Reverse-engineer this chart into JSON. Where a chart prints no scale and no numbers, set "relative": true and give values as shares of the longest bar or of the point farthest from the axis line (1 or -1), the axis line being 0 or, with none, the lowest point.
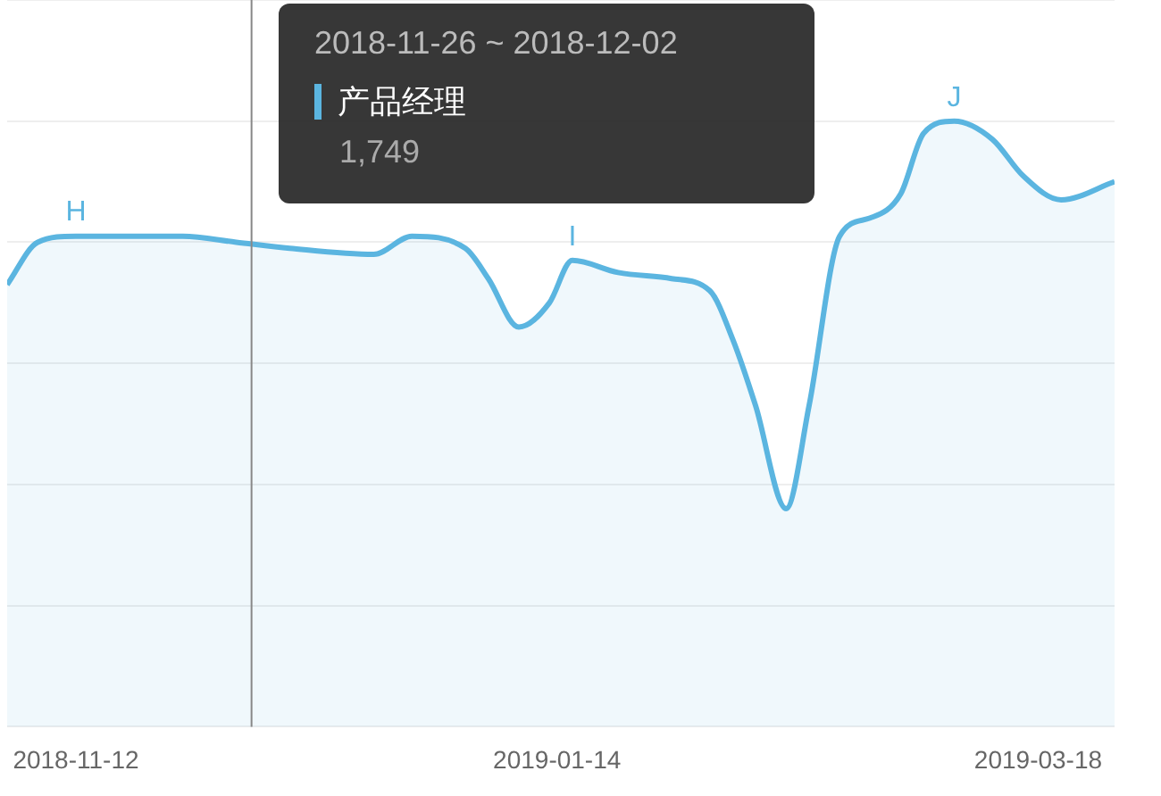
{
  "chart_data": {
    "type": "area",
    "relative": true,
    "grid": "y",
    "legend": "top",
    "x": [
      "2018-11-03",
      "2018-11-07",
      "2018-11-12",
      "2018-11-26",
      "2018-12-03",
      "2018-12-10",
      "2018-12-21",
      "2018-12-26",
      "2019-01-02",
      "2019-01-05",
      "2019-01-09",
      "2019-01-13",
      "2019-01-16",
      "2019-01-22",
      "2019-01-29",
      "2019-02-03",
      "2019-02-06",
      "2019-02-09",
      "2019-02-13",
      "2019-02-16",
      "2019-02-20",
      "2019-02-24",
      "2019-02-28",
      "2019-03-03",
      "2019-03-07",
      "2019-03-12",
      "2019-03-16",
      "2019-03-21",
      "2019-03-28"
    ],
    "xlim": [
      "2018-11-03",
      "2019-03-28"
    ],
    "xticks": [
      "2018-11-12",
      "2019-01-14",
      "2019-03-18"
    ],
    "series": [
      {
        "name": "产品经理",
        "color": "#5bb5e0",
        "values": [
          0.73,
          0.8,
          0.81,
          0.81,
          0.8,
          0.79,
          0.78,
          0.81,
          0.79,
          0.74,
          0.66,
          0.7,
          0.77,
          0.75,
          0.74,
          0.72,
          0.64,
          0.53,
          0.36,
          0.53,
          0.81,
          0.84,
          0.88,
          0.98,
          1,
          0.97,
          0.91,
          0.87,
          0.9
        ]
      }
    ],
    "ref_lines": [
      {
        "axis": "x",
        "value": "2018-12-05",
        "color": "#888888"
      }
    ],
    "annotations": [
      {
        "text": "H",
        "x": "2018-11-12",
        "y": 0.81
      },
      {
        "text": "I",
        "x": "2019-01-16",
        "y": 0.77
      },
      {
        "text": "J",
        "x": "2019-03-07",
        "y": 1
      },
      "2018-11-26 ~ 2018-12-02",
      "1,749"
    ]
  }
}
